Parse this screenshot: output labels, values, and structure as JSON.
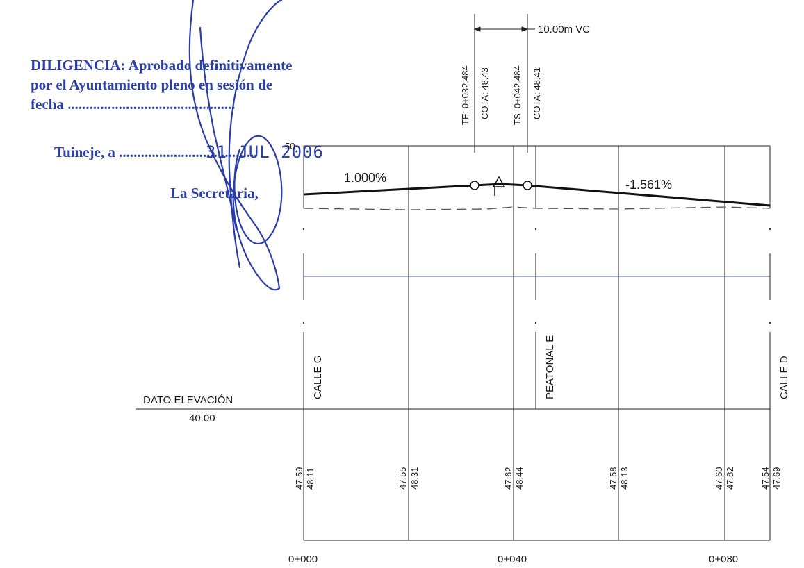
{
  "stamp": {
    "line1": "DILIGENCIA: Aprobado definitivamente",
    "line2": "por el Ayuntamiento pleno en sesión de",
    "line3": "fecha ..............................................",
    "place": "Tuineje, a ......................................",
    "date": "31 JUL 2006",
    "signer": "La Secretaria,",
    "color": "#2b3fa8"
  },
  "curve": {
    "vc_label": "10.00m VC",
    "te_label": "TE: 0+032.484",
    "te_cota": "COTA: 48.43",
    "ts_label": "TS: 0+042.484",
    "ts_cota": "COTA: 48.41",
    "grade_left": "1.000%",
    "grade_right": "-1.561%",
    "top_tick": "50"
  },
  "streets": {
    "left": "CALLE G",
    "middle": "PEATONAL E",
    "right": "CALLE D"
  },
  "datum": {
    "label": "DATO  ELEVACIÓN",
    "value": "40.00"
  },
  "stations": [
    {
      "ground": "47.59",
      "grade": "48.11"
    },
    {
      "ground": "47.55",
      "grade": "48.31"
    },
    {
      "ground": "47.62",
      "grade": "48.44"
    },
    {
      "ground": "47.58",
      "grade": "48.13"
    },
    {
      "ground": "47.60",
      "grade": "47.82"
    },
    {
      "ground": "47.54",
      "grade": "47.69"
    }
  ],
  "chainage": {
    "c0": "0+000",
    "c40": "0+040",
    "c80": "0+080"
  }
}
